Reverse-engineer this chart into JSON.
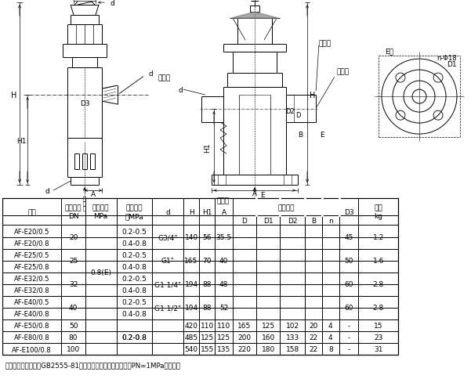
{
  "bg_color": "#ffffff",
  "table_data": [
    [
      "AF-E20/0.5",
      "20",
      "0.8(E)",
      "0.2-0.5",
      "G3/4\"",
      "140",
      "56",
      "35.5",
      "-",
      "-",
      "-",
      "-",
      "-",
      "45",
      "1.2"
    ],
    [
      "AF-E20/0.8",
      "",
      "",
      "0.4-0.8",
      "",
      "",
      "",
      "",
      "",
      "",
      "",
      "",
      "",
      "",
      ""
    ],
    [
      "AF-E25/0.5",
      "25",
      "",
      "0.2-0.5",
      "G1\"",
      "165",
      "70",
      "40",
      "-",
      "-",
      "-",
      "-",
      "-",
      "50",
      "1.6"
    ],
    [
      "AF-E25/0.8",
      "",
      "",
      "0.4-0.8",
      "",
      "",
      "",
      "",
      "",
      "",
      "",
      "",
      "",
      "",
      ""
    ],
    [
      "AF-E32/0.5",
      "32",
      "",
      "0.2-0.5",
      "G1 1/4\"",
      "194",
      "88",
      "48",
      "-",
      "-",
      "-",
      "-",
      "-",
      "60",
      "2.8"
    ],
    [
      "AF-E32/0.8",
      "",
      "",
      "0.4-0.8",
      "",
      "",
      "",
      "",
      "",
      "",
      "",
      "",
      "",
      "",
      ""
    ],
    [
      "AF-E40/0.5",
      "40",
      "",
      "0.2-0.5",
      "G1 1/2\"",
      "194",
      "88",
      "52",
      "-",
      "-",
      "-",
      "-",
      "-",
      "60",
      "2.8"
    ],
    [
      "AF-E40/0.8",
      "",
      "",
      "0.4-0.8",
      "",
      "",
      "",
      "",
      "",
      "",
      "",
      "",
      "",
      "",
      ""
    ],
    [
      "AF-E50/0.8",
      "50",
      "",
      "",
      "",
      "420",
      "110",
      "110",
      "165",
      "125",
      "102",
      "20",
      "4",
      "-",
      "15"
    ],
    [
      "AF-E80/0.8",
      "80",
      "",
      "0.2-0.8",
      "",
      "485",
      "125",
      "125",
      "200",
      "160",
      "133",
      "22",
      "4",
      "-",
      "23"
    ],
    [
      "AF-E100/0.8",
      "100",
      "",
      "",
      "",
      "540",
      "155",
      "135",
      "220",
      "180",
      "158",
      "22",
      "8",
      "-",
      "31"
    ]
  ],
  "note": "注：法兰连接尺寸按GB2555-81《一般用途管法兰连接尺寸》PN=1MPa的规定。"
}
